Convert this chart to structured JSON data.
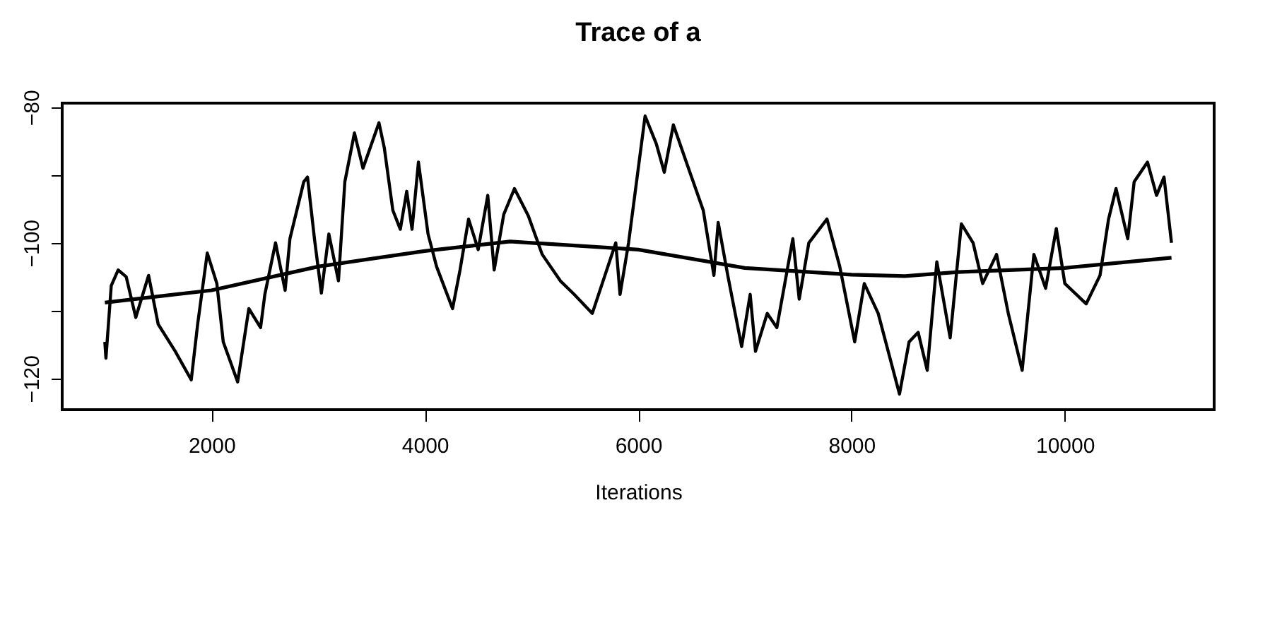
{
  "chart_data": {
    "type": "line",
    "title": "Trace of a",
    "xlabel": "Iterations",
    "xlim": [
      600,
      11400
    ],
    "xticks": [
      2000,
      4000,
      6000,
      8000,
      10000
    ],
    "ylim": [
      -124.6,
      -79.4
    ],
    "yticks": [
      -80,
      {
        "value": -90,
        "label": null
      },
      -100,
      {
        "value": -110,
        "label": null
      },
      -120
    ],
    "grid": false,
    "marker": "none",
    "line_style": "solid",
    "series": [
      {
        "color": "#000000",
        "x": [
          1000,
          1010,
          1060,
          1125,
          1200,
          1290,
          1410,
          1500,
          1660,
          1810,
          1870,
          1960,
          2050,
          2110,
          2245,
          2350,
          2460,
          2500,
          2600,
          2690,
          2735,
          2865,
          2900,
          2965,
          3030,
          3100,
          3190,
          3250,
          3340,
          3420,
          3570,
          3620,
          3700,
          3770,
          3830,
          3880,
          3940,
          4030,
          4110,
          4260,
          4330,
          4410,
          4500,
          4590,
          4650,
          4740,
          4840,
          4970,
          5100,
          5270,
          5400,
          5570,
          5790,
          5830,
          5910,
          6065,
          6170,
          6245,
          6330,
          6485,
          6610,
          6710,
          6750,
          6840,
          6970,
          7050,
          7100,
          7210,
          7300,
          7450,
          7510,
          7600,
          7770,
          7890,
          8030,
          8120,
          8250,
          8450,
          8540,
          8625,
          8710,
          8800,
          8925,
          9030,
          9140,
          9230,
          9360,
          9470,
          9600,
          9710,
          9820,
          9920,
          10000,
          10200,
          10330,
          10410,
          10480,
          10590,
          10650,
          10775,
          10860,
          10930,
          11000
        ],
        "values": [
          -114.6,
          -117,
          -106.3,
          -104,
          -105,
          -111,
          -104.8,
          -112,
          -116,
          -120.2,
          -112,
          -101.5,
          -106,
          -114.6,
          -120.5,
          -109.7,
          -112.5,
          -107.6,
          -100,
          -107,
          -99.4,
          -91,
          -90.3,
          -99.4,
          -107.4,
          -98.7,
          -105.6,
          -91,
          -83.8,
          -89,
          -82.3,
          -86,
          -95.2,
          -98,
          -92.4,
          -98,
          -88.1,
          -98.7,
          -103.5,
          -109.7,
          -104,
          -96.5,
          -101,
          -93,
          -104,
          -95.8,
          -92,
          -96,
          -101.7,
          -105.6,
          -107.6,
          -110.4,
          -100,
          -107.6,
          -100,
          -81.3,
          -85.4,
          -89.6,
          -82.6,
          -89.6,
          -95.2,
          -104.8,
          -97,
          -104.8,
          -115.3,
          -107.6,
          -116,
          -110.4,
          -112.5,
          -99.4,
          -108.3,
          -100,
          -96.5,
          -103.5,
          -114.6,
          -106,
          -110.4,
          -122.3,
          -114.6,
          -113.2,
          -118.8,
          -102.8,
          -114,
          -97.2,
          -100,
          -106,
          -101.7,
          -110.4,
          -118.8,
          -101.7,
          -106.7,
          -97.9,
          -106,
          -109,
          -104.8,
          -96.5,
          -92,
          -99.4,
          -91,
          -88.1,
          -93,
          -90.3,
          -100
        ]
      },
      {
        "color": "#000000",
        "x": [
          1000,
          2000,
          3000,
          4000,
          4800,
          5000,
          6000,
          7000,
          8000,
          8500,
          9000,
          10000,
          11000
        ],
        "values": [
          -108.8,
          -107,
          -103.5,
          -101.2,
          -99.8,
          -100,
          -101,
          -103.7,
          -104.7,
          -104.9,
          -104.3,
          -103.7,
          -102.2
        ]
      }
    ]
  }
}
